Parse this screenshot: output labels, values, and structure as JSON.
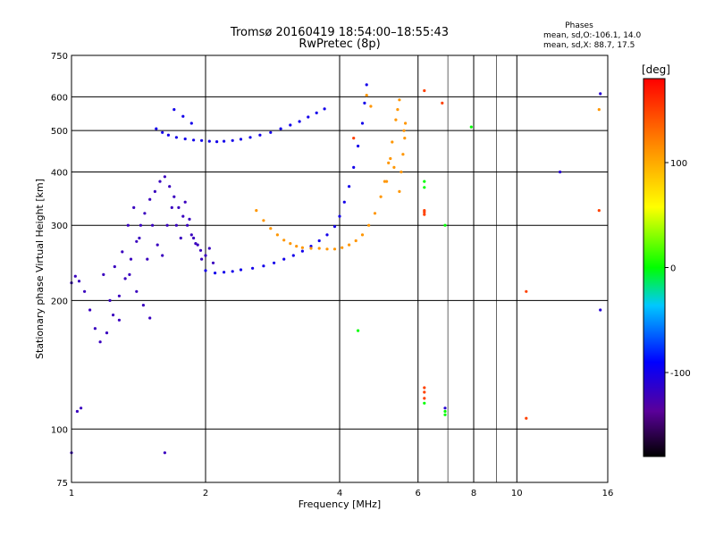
{
  "chart_data": {
    "type": "scatter",
    "title": "Tromsø 20160419 18:54:00–18:55:43",
    "subtitle": "RwPretec (8p)",
    "annotation": {
      "heading": "Phases",
      "line1": "mean, sd,O:-106.1, 14.0",
      "line2": "mean, sd,X:  88.7, 17.5"
    },
    "xlabel": "Frequency [MHz]",
    "ylabel": "Stationary phase Virtual Height [km]",
    "x_scale": "log",
    "y_scale": "log",
    "xlim": [
      1,
      16
    ],
    "ylim": [
      75,
      750
    ],
    "x_ticks": [
      1,
      2,
      4,
      6,
      8,
      10,
      16
    ],
    "x_tick_labels": [
      "1",
      "2",
      "4",
      "6",
      "8",
      "10",
      "16"
    ],
    "y_ticks": [
      75,
      100,
      200,
      300,
      400,
      500,
      600,
      750
    ],
    "y_tick_labels": [
      "75",
      "100",
      "200",
      "300",
      "400",
      "500",
      "600",
      "750"
    ],
    "grid": true,
    "colorbar": {
      "label": "[deg]",
      "range": [
        -180,
        180
      ],
      "ticks": [
        100,
        0,
        -100
      ],
      "tick_labels": [
        "100",
        "0",
        "-100"
      ]
    },
    "series": [
      {
        "values": [
          [
            1.0,
            220
          ],
          [
            1.02,
            228
          ],
          [
            1.04,
            222
          ],
          [
            1.07,
            210
          ],
          [
            1.1,
            190
          ],
          [
            1.13,
            172
          ],
          [
            1.16,
            160
          ],
          [
            1.2,
            168
          ],
          [
            1.24,
            185
          ],
          [
            1.28,
            205
          ],
          [
            1.32,
            225
          ],
          [
            1.36,
            250
          ],
          [
            1.4,
            275
          ],
          [
            1.43,
            300
          ],
          [
            1.46,
            320
          ],
          [
            1.5,
            345
          ],
          [
            1.54,
            360
          ],
          [
            1.58,
            380
          ],
          [
            1.62,
            390
          ],
          [
            1.66,
            370
          ],
          [
            1.7,
            350
          ],
          [
            1.74,
            330
          ],
          [
            1.78,
            315
          ],
          [
            1.82,
            300
          ],
          [
            1.86,
            285
          ],
          [
            1.9,
            272
          ],
          [
            1.95,
            262
          ],
          [
            2.0,
            255
          ],
          [
            1.25,
            240
          ],
          [
            1.3,
            260
          ],
          [
            1.35,
            230
          ],
          [
            1.4,
            210
          ],
          [
            1.45,
            195
          ],
          [
            1.5,
            182
          ],
          [
            1.18,
            230
          ],
          [
            1.22,
            200
          ],
          [
            1.28,
            180
          ],
          [
            1.34,
            300
          ],
          [
            1.38,
            330
          ],
          [
            1.42,
            280
          ],
          [
            1.48,
            250
          ],
          [
            1.52,
            300
          ],
          [
            1.56,
            270
          ],
          [
            1.6,
            255
          ],
          [
            1.64,
            300
          ],
          [
            1.68,
            330
          ],
          [
            1.72,
            300
          ],
          [
            1.76,
            280
          ],
          [
            1.8,
            340
          ],
          [
            1.84,
            310
          ],
          [
            1.88,
            280
          ],
          [
            1.92,
            270
          ],
          [
            1.96,
            250
          ],
          [
            2.04,
            265
          ],
          [
            2.08,
            245
          ],
          [
            1.03,
            110
          ],
          [
            1.05,
            112
          ],
          [
            1.0,
            88
          ],
          [
            1.62,
            88
          ]
        ],
        "phase": -120
      },
      {
        "values": [
          [
            1.55,
            505
          ],
          [
            1.6,
            495
          ],
          [
            1.65,
            488
          ],
          [
            1.72,
            482
          ],
          [
            1.8,
            478
          ],
          [
            1.88,
            475
          ],
          [
            1.96,
            474
          ],
          [
            2.04,
            472
          ],
          [
            2.12,
            471
          ],
          [
            2.2,
            472
          ],
          [
            2.3,
            474
          ],
          [
            2.4,
            477
          ],
          [
            2.52,
            482
          ],
          [
            2.65,
            488
          ],
          [
            2.8,
            495
          ],
          [
            2.95,
            505
          ],
          [
            3.1,
            515
          ],
          [
            3.25,
            525
          ],
          [
            3.4,
            538
          ],
          [
            3.55,
            550
          ],
          [
            3.7,
            562
          ],
          [
            1.7,
            560
          ],
          [
            1.78,
            540
          ],
          [
            1.86,
            520
          ],
          [
            2.0,
            235
          ],
          [
            2.1,
            232
          ],
          [
            2.2,
            233
          ],
          [
            2.3,
            234
          ],
          [
            2.4,
            236
          ],
          [
            2.55,
            238
          ],
          [
            2.7,
            241
          ],
          [
            2.85,
            245
          ],
          [
            3.0,
            250
          ],
          [
            3.15,
            255
          ],
          [
            3.3,
            261
          ],
          [
            3.45,
            268
          ],
          [
            3.6,
            276
          ],
          [
            3.75,
            285
          ],
          [
            3.9,
            298
          ],
          [
            4.0,
            315
          ],
          [
            4.1,
            340
          ],
          [
            4.2,
            370
          ],
          [
            4.3,
            410
          ],
          [
            4.4,
            460
          ],
          [
            4.5,
            520
          ],
          [
            4.55,
            580
          ],
          [
            4.6,
            640
          ]
        ],
        "phase": -100
      },
      {
        "values": [
          [
            2.6,
            325
          ],
          [
            2.7,
            308
          ],
          [
            2.8,
            295
          ],
          [
            2.9,
            285
          ],
          [
            3.0,
            277
          ],
          [
            3.1,
            272
          ],
          [
            3.2,
            268
          ],
          [
            3.3,
            266
          ],
          [
            3.45,
            265
          ],
          [
            3.6,
            265
          ],
          [
            3.75,
            264
          ],
          [
            3.9,
            264
          ],
          [
            4.05,
            266
          ],
          [
            4.2,
            270
          ],
          [
            4.35,
            276
          ],
          [
            4.5,
            285
          ],
          [
            4.65,
            300
          ],
          [
            4.8,
            320
          ],
          [
            4.95,
            350
          ],
          [
            5.05,
            380
          ],
          [
            5.15,
            420
          ],
          [
            5.25,
            470
          ],
          [
            5.35,
            530
          ],
          [
            5.45,
            590
          ],
          [
            5.45,
            360
          ],
          [
            5.5,
            400
          ],
          [
            5.55,
            440
          ],
          [
            5.6,
            480
          ],
          [
            5.62,
            520
          ],
          [
            5.58,
            500
          ],
          [
            5.3,
            410
          ],
          [
            5.2,
            430
          ],
          [
            5.1,
            380
          ],
          [
            4.6,
            605
          ],
          [
            4.7,
            570
          ],
          [
            5.4,
            560
          ],
          [
            15.3,
            560
          ]
        ],
        "phase": 110
      },
      {
        "values": [
          [
            6.2,
            620
          ],
          [
            6.2,
            325
          ],
          [
            6.2,
            322
          ],
          [
            6.2,
            318
          ],
          [
            6.2,
            125
          ],
          [
            6.2,
            122
          ],
          [
            6.2,
            118
          ],
          [
            6.8,
            580
          ],
          [
            10.5,
            210
          ],
          [
            10.5,
            106
          ],
          [
            15.3,
            325
          ],
          [
            4.3,
            480
          ]
        ],
        "phase": 150
      },
      {
        "values": [
          [
            6.2,
            380
          ],
          [
            6.2,
            368
          ],
          [
            6.2,
            115
          ],
          [
            6.9,
            300
          ],
          [
            7.9,
            510
          ],
          [
            6.9,
            110
          ],
          [
            6.9,
            108
          ],
          [
            4.4,
            170
          ]
        ],
        "phase": 0
      },
      {
        "values": [
          [
            12.5,
            400
          ],
          [
            15.4,
            610
          ],
          [
            15.4,
            190
          ],
          [
            6.9,
            112
          ]
        ],
        "phase": -110
      }
    ]
  }
}
